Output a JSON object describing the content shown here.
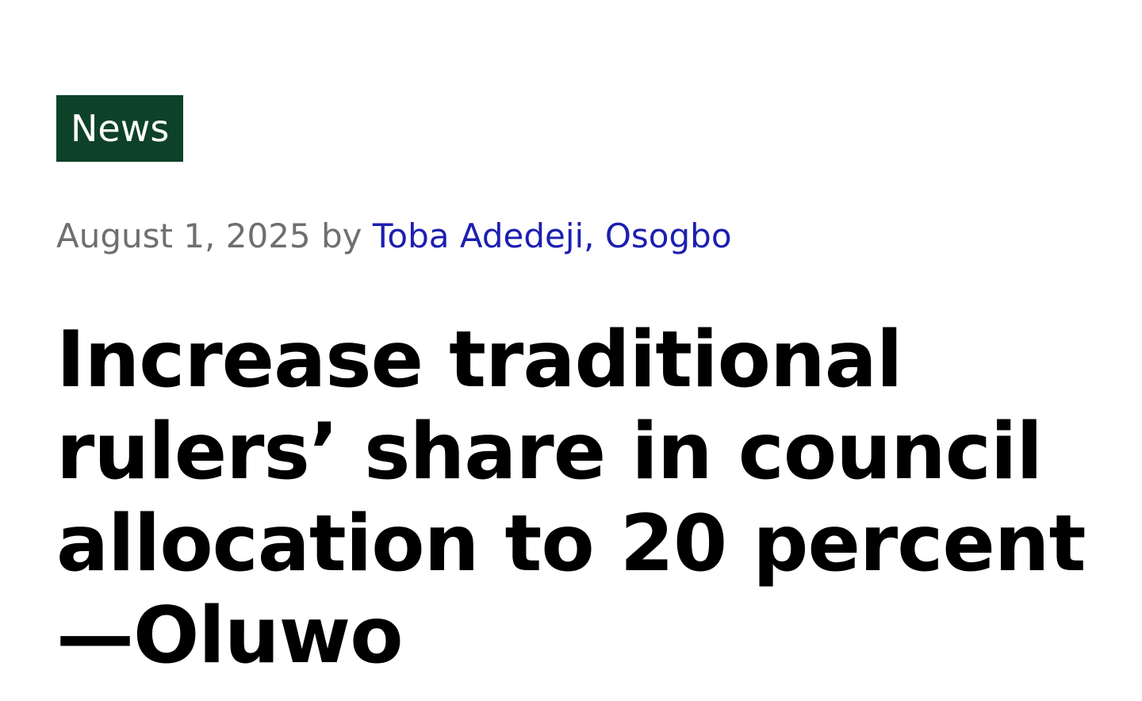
{
  "category": {
    "label": "News"
  },
  "meta": {
    "date": "August 1, 2025",
    "by": "by",
    "author": "Toba Adedeji, Osogbo"
  },
  "headline": {
    "text": "Increase traditional rulers’ share in council allocation to 20 percent —Oluwo"
  },
  "colors": {
    "badge_background": "#0e4228",
    "badge_text": "#ffffff",
    "meta_text": "#6f6f6f",
    "author_link": "#1c1fb0",
    "headline_text": "#000000"
  }
}
